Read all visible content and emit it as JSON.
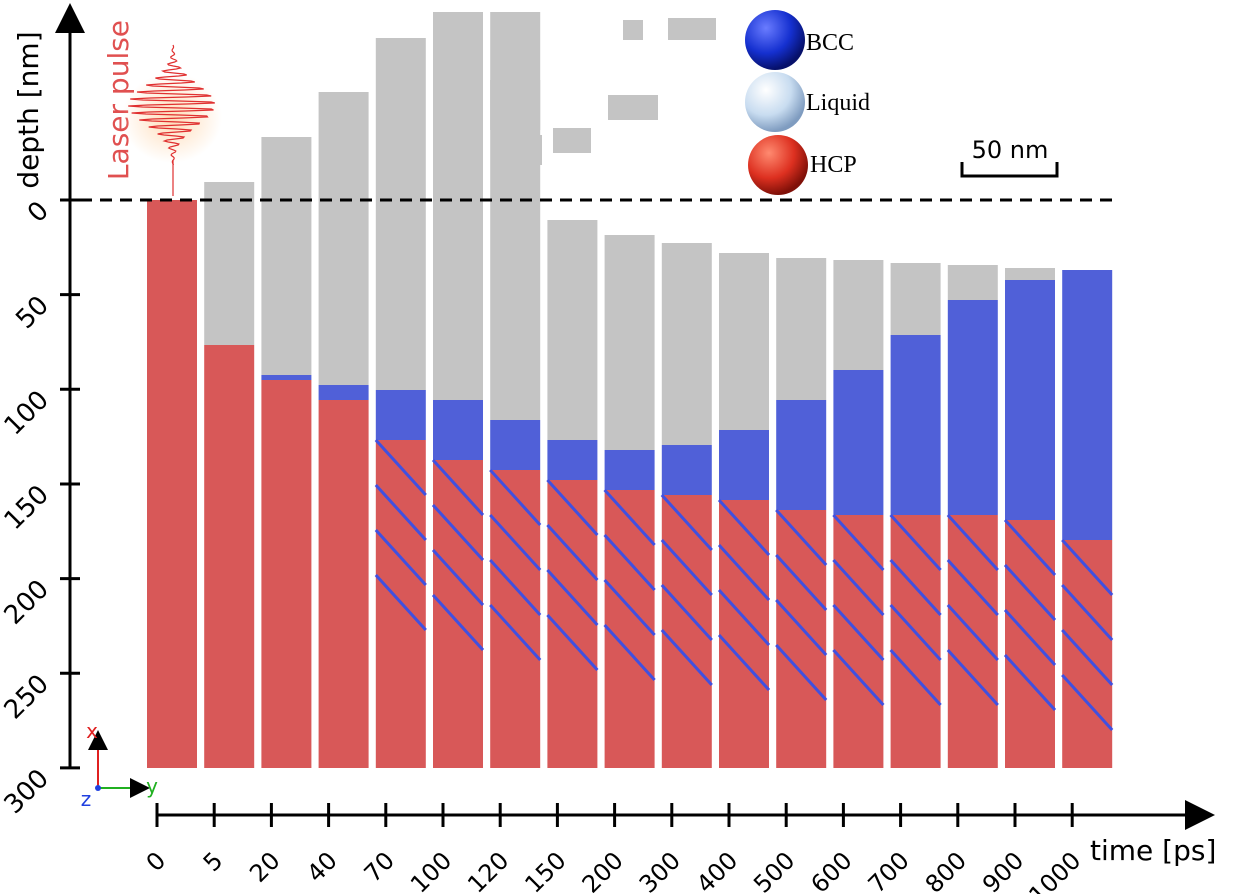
{
  "depth_axis": {
    "label": "depth [nm]",
    "ticks": [
      0,
      50,
      100,
      150,
      200,
      250,
      300
    ]
  },
  "time_axis": {
    "label": "time [ps]",
    "ticks": [
      0,
      5,
      20,
      40,
      70,
      100,
      120,
      150,
      200,
      300,
      400,
      500,
      600,
      700,
      800,
      900,
      1000
    ]
  },
  "laser_label": "Laser pulse",
  "legend": [
    "BCC",
    "Liquid",
    "HCP"
  ],
  "scale_bar": "50 nm",
  "triad": {
    "x": "x",
    "y": "y",
    "z": "z"
  }
}
